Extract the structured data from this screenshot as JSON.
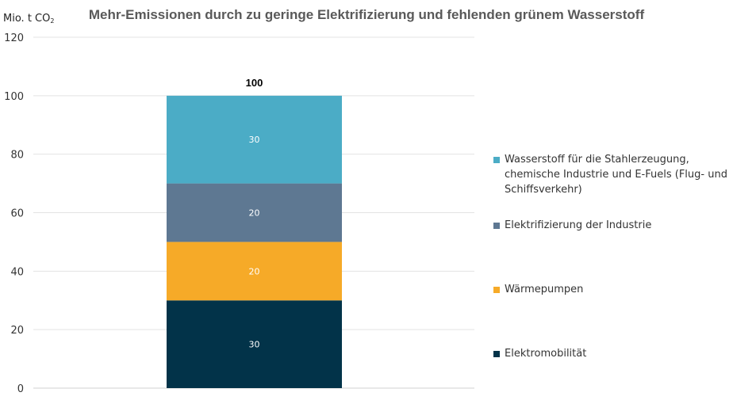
{
  "chart_data": {
    "type": "bar",
    "stacked": true,
    "title": "Mehr-Emissionen durch zu geringe Elektrifizierung und fehlenden grünem Wasserstoff",
    "ylabel_text": "Mio. t CO",
    "ylabel_sub": "2",
    "ylim": [
      0,
      120
    ],
    "yticks": [
      0,
      20,
      40,
      60,
      80,
      100,
      120
    ],
    "grid": true,
    "total_label": "100",
    "series": [
      {
        "name": "Elektromobilität",
        "value": 30,
        "label": "30",
        "color": "#023349"
      },
      {
        "name": "Wärmepumpen",
        "value": 20,
        "label": "20",
        "color": "#f6aa28"
      },
      {
        "name": "Elektrifizierung der Industrie",
        "value": 20,
        "label": "20",
        "color": "#5e7892"
      },
      {
        "name": "Wasserstoff für die Stahlerzeugung, chemische Industrie und E-Fuels (Flug- und Schiffsverkehr)",
        "value": 30,
        "label": "30",
        "color": "#4bacc6"
      }
    ],
    "legend_position": "right"
  }
}
